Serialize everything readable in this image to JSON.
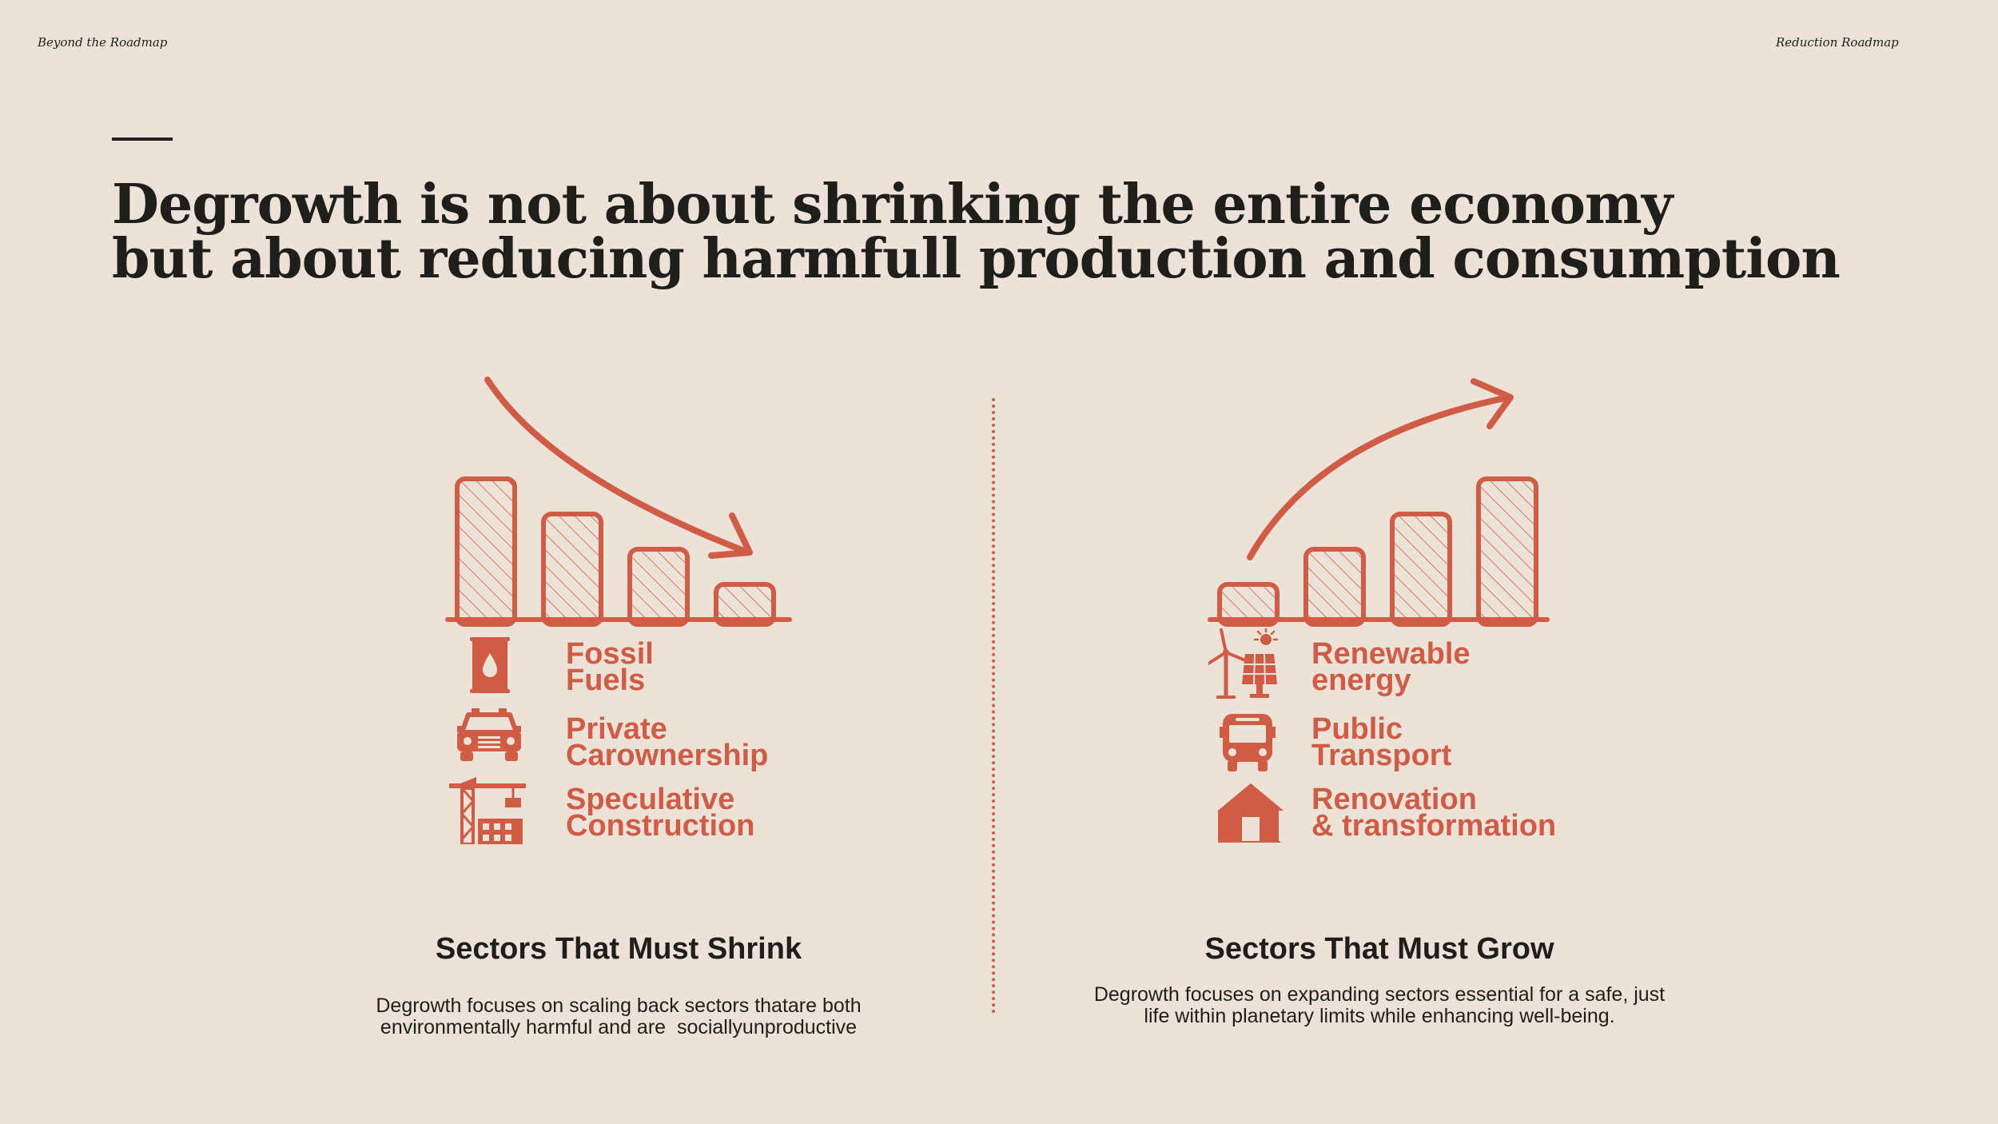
{
  "header": {
    "left_label": "Beyond the Roadmap",
    "right_label": "Reduction Roadmap"
  },
  "headline": {
    "line1": "Degrowth is not about shrinking the entire economy",
    "line2": "but about reducing harmfull production and consumption"
  },
  "colors": {
    "accent": "#d05c46",
    "background": "#ece2d7",
    "text": "#1e1f1a"
  },
  "shrink": {
    "trend": "decreasing",
    "bar_levels": [
      4,
      3,
      2,
      1
    ],
    "sectors": [
      {
        "icon": "oil-barrel-icon",
        "line1": "Fossil",
        "line2": "Fuels"
      },
      {
        "icon": "car-icon",
        "line1": "Private",
        "line2": "Carownership"
      },
      {
        "icon": "construction-crane-icon",
        "line1": "Speculative",
        "line2": "Construction"
      }
    ],
    "title": "Sectors That Must Shrink",
    "desc_line1": "Degrowth focuses on scaling back sectors thatare both",
    "desc_line2": "environmentally harmful and are  sociallyunproductive"
  },
  "grow": {
    "trend": "increasing",
    "bar_levels": [
      1,
      2,
      3,
      4
    ],
    "sectors": [
      {
        "icon": "wind-solar-icon",
        "line1": "Renewable",
        "line2": "energy"
      },
      {
        "icon": "bus-icon",
        "line1": "Public",
        "line2": "Transport"
      },
      {
        "icon": "house-icon",
        "line1": "Renovation",
        "line2": "& transformation"
      }
    ],
    "title": "Sectors That Must Grow",
    "desc_line1": "Degrowth focuses on expanding sectors essential for a safe, just",
    "desc_line2": "life within planetary limits while enhancing well-being."
  }
}
